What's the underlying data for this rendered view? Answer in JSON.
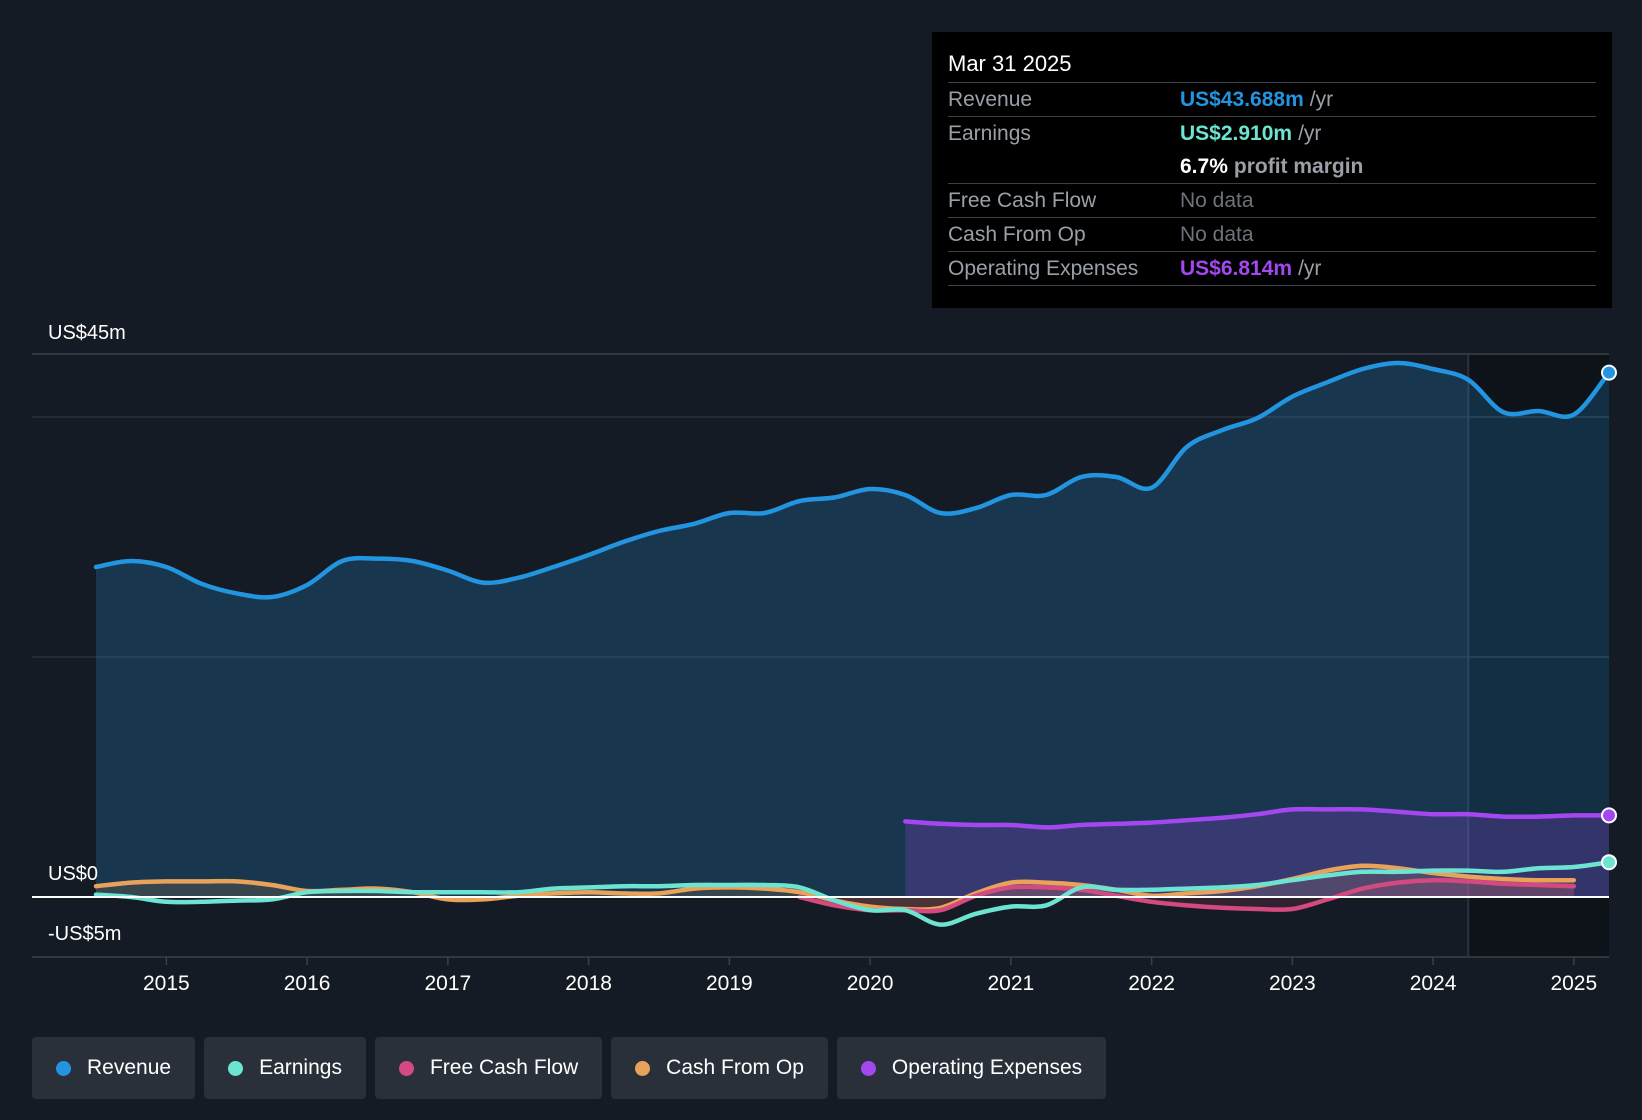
{
  "tooltip": {
    "date": "Mar 31 2025",
    "revenue_label": "Revenue",
    "revenue_value": "US$43.688m",
    "revenue_unit": "/yr",
    "earnings_label": "Earnings",
    "earnings_value": "US$2.910m",
    "earnings_unit": "/yr",
    "margin_pct": "6.7%",
    "margin_text": "profit margin",
    "fcf_label": "Free Cash Flow",
    "fcf_value": "No data",
    "cfo_label": "Cash From Op",
    "cfo_value": "No data",
    "opex_label": "Operating Expenses",
    "opex_value": "US$6.814m",
    "opex_unit": "/yr"
  },
  "legend": {
    "items": [
      {
        "label": "Revenue",
        "color": "#2394df"
      },
      {
        "label": "Earnings",
        "color": "#6de4d1"
      },
      {
        "label": "Free Cash Flow",
        "color": "#d34a80"
      },
      {
        "label": "Cash From Op",
        "color": "#e8a25a"
      },
      {
        "label": "Operating Expenses",
        "color": "#a447f0"
      }
    ]
  },
  "chart_data": {
    "type": "line",
    "title": "",
    "y_tick_labels": [
      "US$45m",
      "US$0",
      "-US$5m"
    ],
    "ylim": [
      -5,
      45
    ],
    "xlim": [
      2014.5,
      2025.25
    ],
    "x_tick_labels": [
      "2015",
      "2016",
      "2017",
      "2018",
      "2019",
      "2020",
      "2021",
      "2022",
      "2023",
      "2024",
      "2025"
    ],
    "x_ticks": [
      2015,
      2016,
      2017,
      2018,
      2019,
      2020,
      2021,
      2022,
      2023,
      2024,
      2025
    ],
    "forecast_start": 2024.25,
    "series": [
      {
        "name": "Revenue",
        "color": "#2394df",
        "area": true,
        "x": [
          2014.5,
          2014.75,
          2015.0,
          2015.25,
          2015.5,
          2015.75,
          2016.0,
          2016.25,
          2016.5,
          2016.75,
          2017.0,
          2017.25,
          2017.5,
          2017.75,
          2018.0,
          2018.25,
          2018.5,
          2018.75,
          2019.0,
          2019.25,
          2019.5,
          2019.75,
          2020.0,
          2020.25,
          2020.5,
          2020.75,
          2021.0,
          2021.25,
          2021.5,
          2021.75,
          2022.0,
          2022.25,
          2022.5,
          2022.75,
          2023.0,
          2023.25,
          2023.5,
          2023.75,
          2024.0,
          2024.25,
          2024.5,
          2024.75,
          2025.0,
          2025.25
        ],
        "values": [
          27.5,
          28.0,
          27.5,
          26.1,
          25.3,
          25.0,
          26.0,
          28.0,
          28.2,
          28.0,
          27.2,
          26.2,
          26.6,
          27.5,
          28.5,
          29.6,
          30.5,
          31.1,
          32.0,
          32.0,
          33.0,
          33.3,
          34.0,
          33.5,
          32.0,
          32.4,
          33.5,
          33.5,
          35.0,
          35.0,
          34.1,
          37.5,
          38.9,
          39.9,
          41.7,
          42.9,
          44.0,
          44.5,
          44.0,
          43.1,
          40.4,
          40.5,
          40.2,
          43.7
        ]
      },
      {
        "name": "Operating Expenses",
        "color": "#a447f0",
        "area": true,
        "x": [
          2020.25,
          2020.5,
          2020.75,
          2021.0,
          2021.25,
          2021.5,
          2021.75,
          2022.0,
          2022.25,
          2022.5,
          2022.75,
          2023.0,
          2023.25,
          2023.5,
          2023.75,
          2024.0,
          2024.25,
          2024.5,
          2024.75,
          2025.0,
          2025.25
        ],
        "values": [
          6.3,
          6.1,
          6.0,
          6.0,
          5.8,
          6.0,
          6.1,
          6.2,
          6.4,
          6.6,
          6.9,
          7.3,
          7.3,
          7.3,
          7.1,
          6.9,
          6.9,
          6.7,
          6.7,
          6.8,
          6.8
        ]
      },
      {
        "name": "Cash From Op",
        "color": "#e8a25a",
        "area": true,
        "x": [
          2014.5,
          2014.75,
          2015.0,
          2015.25,
          2015.5,
          2015.75,
          2016.0,
          2016.25,
          2016.5,
          2016.75,
          2017.0,
          2017.25,
          2017.5,
          2017.75,
          2018.0,
          2018.25,
          2018.5,
          2018.75,
          2019.0,
          2019.25,
          2019.5,
          2019.75,
          2020.0,
          2020.25,
          2020.5,
          2020.75,
          2021.0,
          2021.25,
          2021.5,
          2021.75,
          2022.0,
          2022.25,
          2022.5,
          2022.75,
          2023.0,
          2023.25,
          2023.5,
          2023.75,
          2024.0,
          2024.25,
          2024.5,
          2024.75,
          2025.0
        ],
        "values": [
          0.9,
          1.2,
          1.3,
          1.3,
          1.3,
          1.0,
          0.5,
          0.6,
          0.7,
          0.4,
          -0.2,
          -0.2,
          0.1,
          0.3,
          0.4,
          0.3,
          0.3,
          0.7,
          0.8,
          0.7,
          0.4,
          -0.3,
          -0.8,
          -1.0,
          -0.9,
          0.3,
          1.2,
          1.2,
          1.0,
          0.6,
          0.1,
          0.3,
          0.5,
          0.9,
          1.5,
          2.2,
          2.6,
          2.4,
          2.0,
          1.7,
          1.5,
          1.4,
          1.4
        ]
      },
      {
        "name": "Free Cash Flow",
        "color": "#d34a80",
        "area": true,
        "x": [
          2019.5,
          2019.75,
          2020.0,
          2020.25,
          2020.5,
          2020.75,
          2021.0,
          2021.25,
          2021.5,
          2021.75,
          2022.0,
          2022.25,
          2022.5,
          2022.75,
          2023.0,
          2023.25,
          2023.5,
          2023.75,
          2024.0,
          2024.25,
          2024.5,
          2024.75,
          2025.0
        ],
        "values": [
          0.0,
          -0.7,
          -1.1,
          -1.1,
          -1.1,
          0.1,
          0.8,
          0.8,
          0.6,
          0.1,
          -0.4,
          -0.7,
          -0.9,
          -1.0,
          -1.0,
          -0.2,
          0.7,
          1.2,
          1.4,
          1.3,
          1.1,
          1.0,
          0.9
        ]
      },
      {
        "name": "Earnings",
        "color": "#6de4d1",
        "area": false,
        "x": [
          2014.5,
          2014.75,
          2015.0,
          2015.25,
          2015.5,
          2015.75,
          2016.0,
          2016.25,
          2016.5,
          2016.75,
          2017.0,
          2017.25,
          2017.5,
          2017.75,
          2018.0,
          2018.25,
          2018.5,
          2018.75,
          2019.0,
          2019.25,
          2019.5,
          2019.75,
          2020.0,
          2020.25,
          2020.5,
          2020.75,
          2021.0,
          2021.25,
          2021.5,
          2021.75,
          2022.0,
          2022.25,
          2022.5,
          2022.75,
          2023.0,
          2023.25,
          2023.5,
          2023.75,
          2024.0,
          2024.25,
          2024.5,
          2024.75,
          2025.0,
          2025.25
        ],
        "values": [
          0.2,
          0.0,
          -0.4,
          -0.4,
          -0.3,
          -0.2,
          0.4,
          0.5,
          0.5,
          0.4,
          0.4,
          0.4,
          0.4,
          0.7,
          0.8,
          0.9,
          0.9,
          1.0,
          1.0,
          1.0,
          0.8,
          -0.3,
          -1.1,
          -1.1,
          -2.3,
          -1.4,
          -0.8,
          -0.7,
          0.8,
          0.6,
          0.6,
          0.7,
          0.8,
          1.0,
          1.4,
          1.8,
          2.1,
          2.1,
          2.2,
          2.2,
          2.1,
          2.4,
          2.5,
          2.9
        ]
      }
    ]
  }
}
